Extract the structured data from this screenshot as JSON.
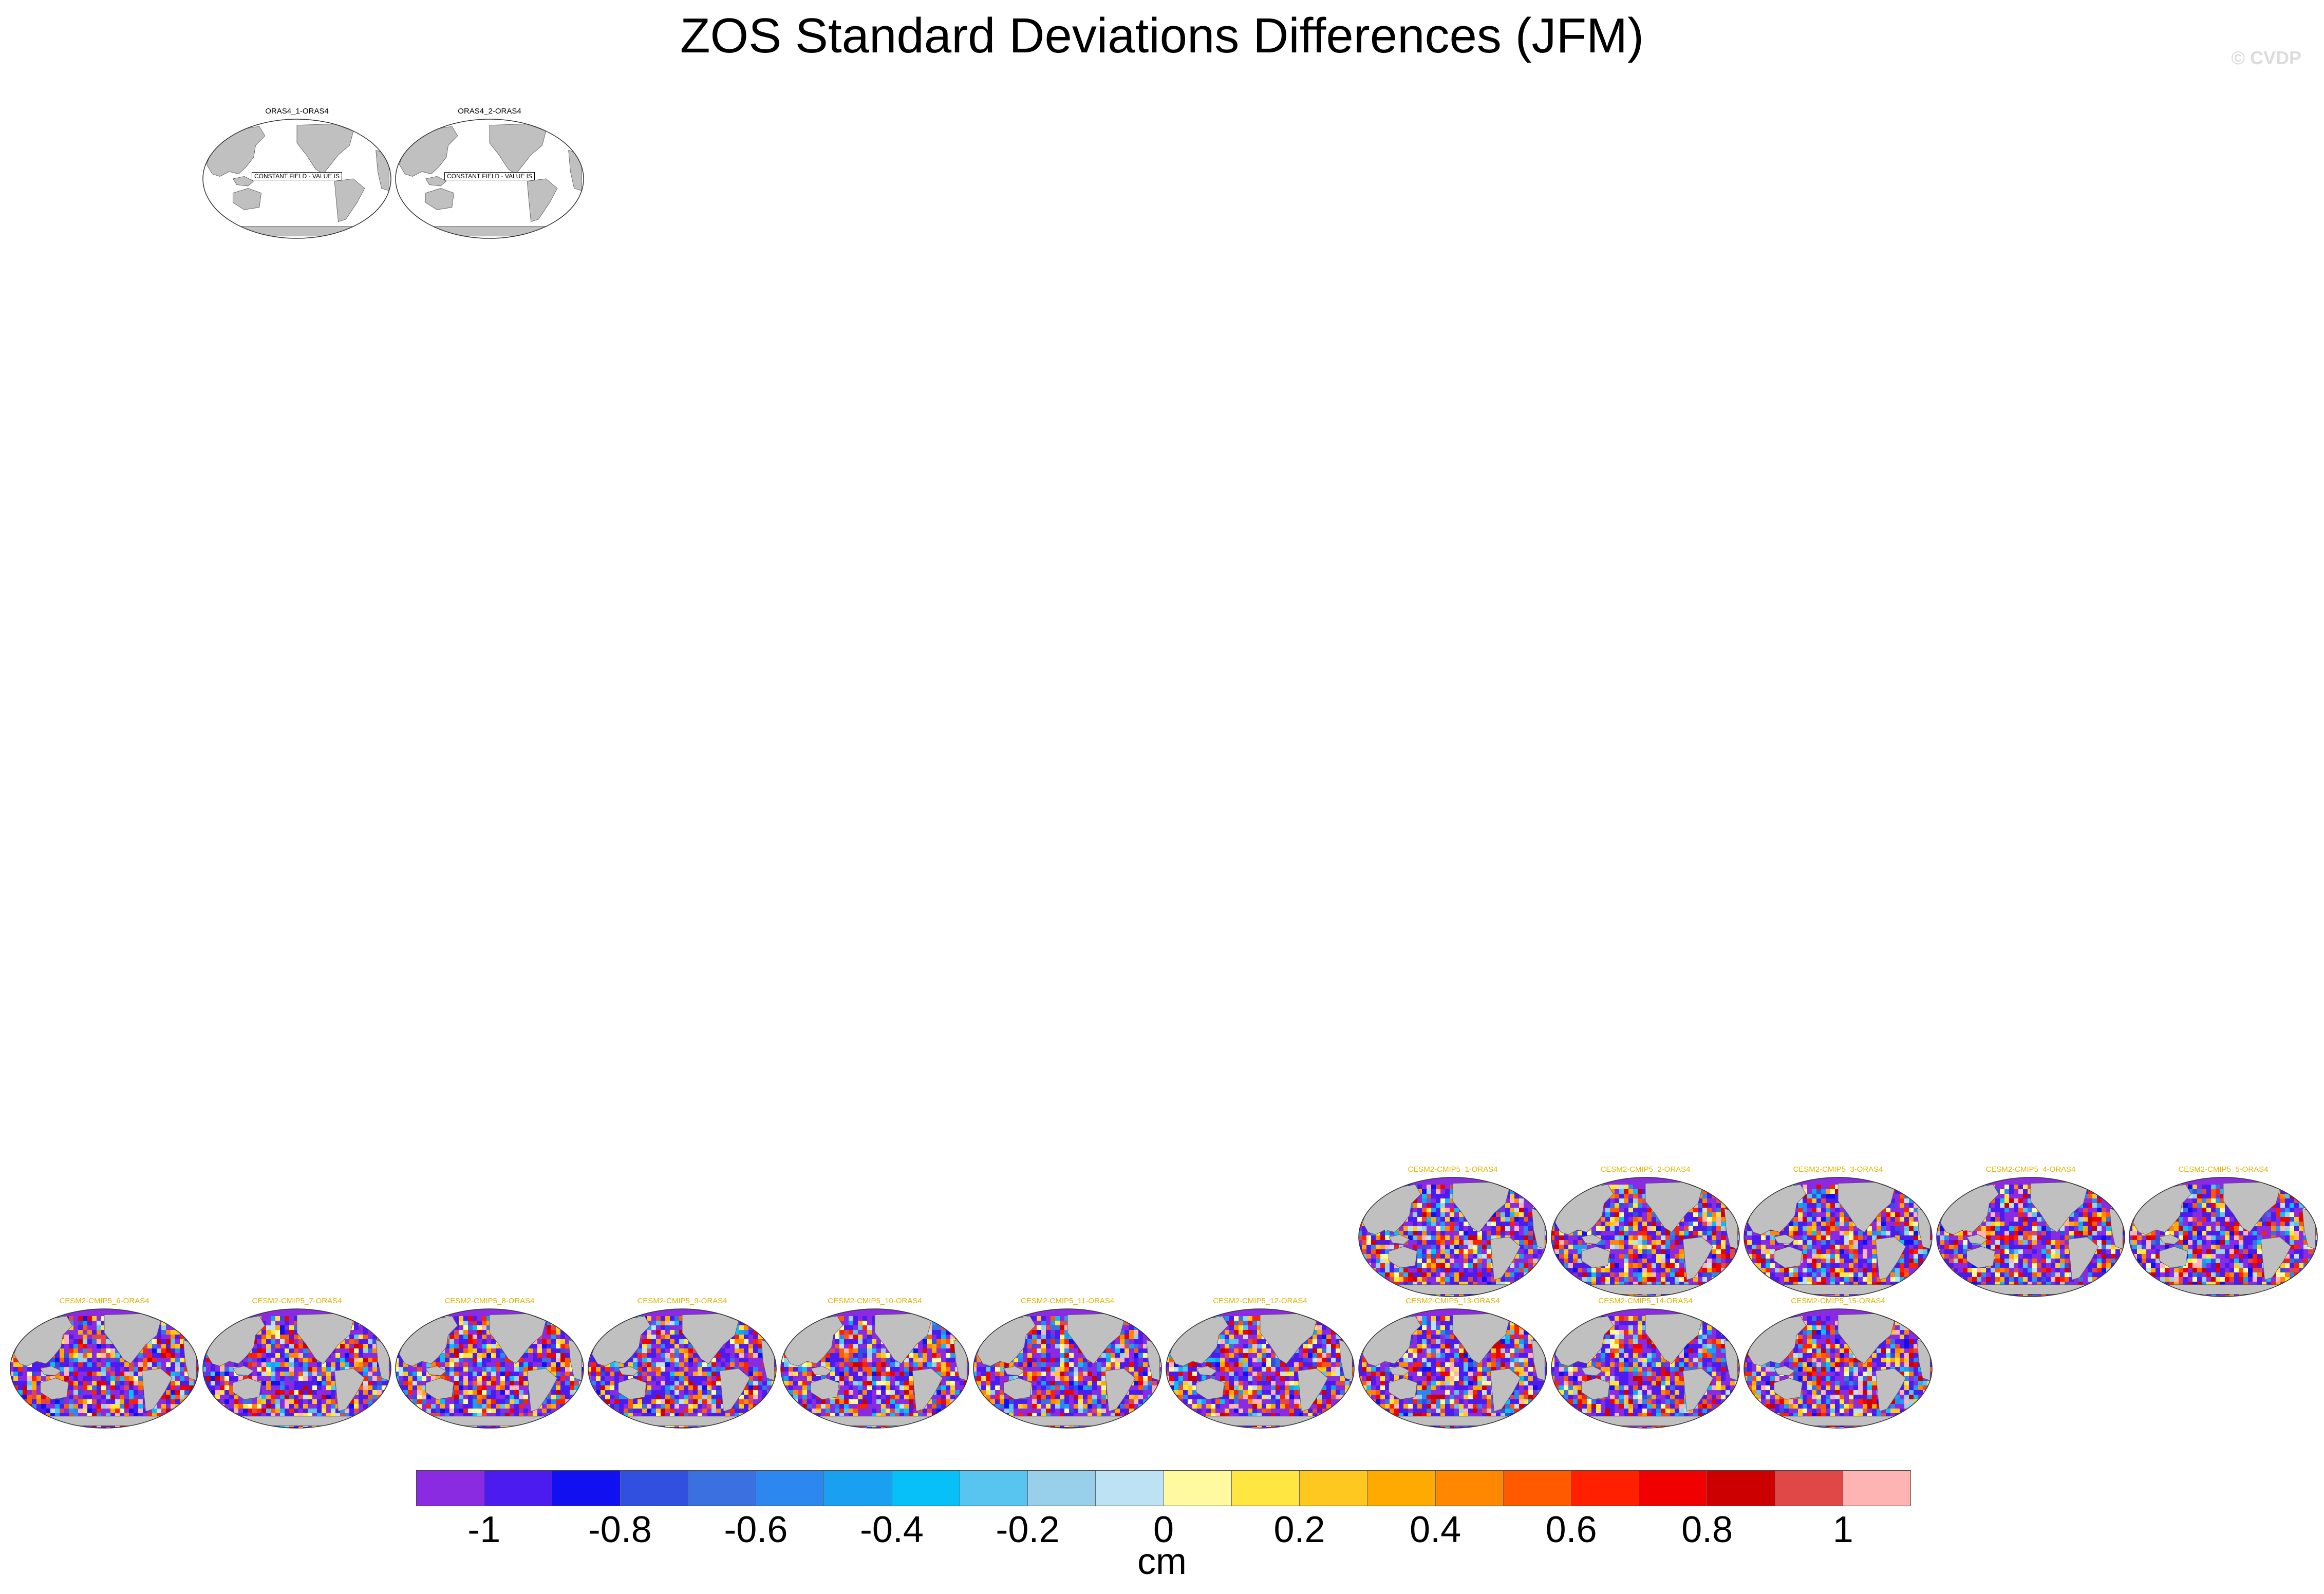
{
  "title": "ZOS Standard Deviations Differences (JFM)",
  "credit": "© CVDP",
  "units": "cm",
  "colors": {
    "land": "#c0c0c0",
    "ocean_missing": "#ffffff",
    "obs_title": "#000000",
    "model_title": "#e0b400"
  },
  "colorbar": {
    "colors": [
      "#8a2be2",
      "#4b1bf0",
      "#1010f0",
      "#3150e0",
      "#3a70e0",
      "#2c88f0",
      "#1aa0f0",
      "#08c0f8",
      "#58c4f0",
      "#98d0ec",
      "#bde2f4",
      "#fffaa0",
      "#ffe640",
      "#ffc820",
      "#ffaa00",
      "#ff8800",
      "#ff5a00",
      "#ff2000",
      "#f00000",
      "#cc0000",
      "#e04848",
      "#ffb4b4"
    ],
    "tick_labels": [
      "-1",
      "-0.8",
      "-0.6",
      "-0.4",
      "-0.2",
      "0",
      "0.2",
      "0.4",
      "0.6",
      "0.8",
      "1"
    ]
  },
  "panels": [
    {
      "id": "p0",
      "title": "ORAS4_1-ORAS4",
      "kind": "constant",
      "const_label": "CONSTANT FIELD - VALUE IS"
    },
    {
      "id": "p1",
      "title": "ORAS4_2-ORAS4",
      "kind": "constant",
      "const_label": "CONSTANT FIELD - VALUE IS"
    },
    {
      "id": "p2",
      "title": "CESM2-CMIP5_1-ORAS4",
      "kind": "model"
    },
    {
      "id": "p3",
      "title": "CESM2-CMIP5_2-ORAS4",
      "kind": "model"
    },
    {
      "id": "p4",
      "title": "CESM2-CMIP5_3-ORAS4",
      "kind": "model"
    },
    {
      "id": "p5",
      "title": "CESM2-CMIP5_4-ORAS4",
      "kind": "model"
    },
    {
      "id": "p6",
      "title": "CESM2-CMIP5_5-ORAS4",
      "kind": "model"
    },
    {
      "id": "p7",
      "title": "CESM2-CMIP5_6-ORAS4",
      "kind": "model"
    },
    {
      "id": "p8",
      "title": "CESM2-CMIP5_7-ORAS4",
      "kind": "model"
    },
    {
      "id": "p9",
      "title": "CESM2-CMIP5_8-ORAS4",
      "kind": "model"
    },
    {
      "id": "p10",
      "title": "CESM2-CMIP5_9-ORAS4",
      "kind": "model"
    },
    {
      "id": "p11",
      "title": "CESM2-CMIP5_10-ORAS4",
      "kind": "model"
    },
    {
      "id": "p12",
      "title": "CESM2-CMIP5_11-ORAS4",
      "kind": "model"
    },
    {
      "id": "p13",
      "title": "CESM2-CMIP5_12-ORAS4",
      "kind": "model"
    },
    {
      "id": "p14",
      "title": "CESM2-CMIP5_13-ORAS4",
      "kind": "model"
    },
    {
      "id": "p15",
      "title": "CESM2-CMIP5_14-ORAS4",
      "kind": "model"
    },
    {
      "id": "p16",
      "title": "CESM2-CMIP5_15-ORAS4",
      "kind": "model"
    }
  ]
}
